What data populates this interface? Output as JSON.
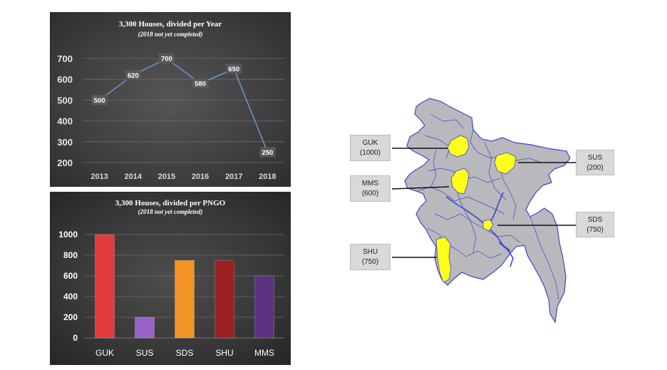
{
  "colors": {
    "line": "#6c8fd3",
    "label_bg": "#595959",
    "grid": "#6b6b6b",
    "map_fill": "#b9b9bd",
    "map_border": "#3a46c8",
    "map_highlight": "#ffff1a"
  },
  "line_panel": {
    "title": "3,300 Houses, divided per Year",
    "subtitle": "(2018 not yet completed)"
  },
  "bar_panel": {
    "title": "3,300 Houses, divided per PNGO",
    "subtitle": "(2018 not yet completed)"
  },
  "chart_data": [
    {
      "type": "line",
      "title": "3,300 Houses, divided per Year",
      "subtitle": "(2018 not yet completed)",
      "x": [
        "2013",
        "2014",
        "2015",
        "2016",
        "2017",
        "2018"
      ],
      "values": [
        500,
        620,
        700,
        580,
        650,
        250
      ],
      "ylim": [
        200,
        700
      ],
      "yticks": [
        200,
        300,
        400,
        500,
        600,
        700
      ],
      "data_labels": true,
      "grid": true
    },
    {
      "type": "bar",
      "title": "3,300 Houses, divided per PNGO",
      "subtitle": "(2018 not yet completed)",
      "categories": [
        "GUK",
        "SUS",
        "SDS",
        "SHU",
        "MMS"
      ],
      "values": [
        1000,
        200,
        750,
        750,
        600
      ],
      "colors": [
        "#e23b3b",
        "#9a62c9",
        "#f39424",
        "#9b1f22",
        "#5b3380"
      ],
      "ylim": [
        0,
        1000
      ],
      "yticks": [
        0,
        200,
        400,
        600,
        800,
        1000
      ],
      "grid": true
    }
  ],
  "map": {
    "callouts": [
      {
        "name": "GUK",
        "value": "(1000)"
      },
      {
        "name": "MMS",
        "value": "(600)"
      },
      {
        "name": "SHU",
        "value": "(750)"
      },
      {
        "name": "SUS",
        "value": "(200)"
      },
      {
        "name": "SDS",
        "value": "(750)"
      }
    ]
  }
}
